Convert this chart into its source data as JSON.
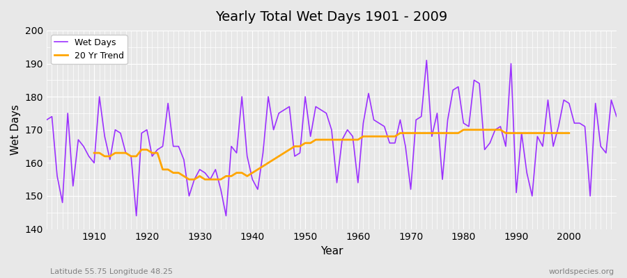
{
  "title": "Yearly Total Wet Days 1901 - 2009",
  "xlabel": "Year",
  "ylabel": "Wet Days",
  "bottom_left_label": "Latitude 55.75 Longitude 48.25",
  "bottom_right_label": "worldspecies.org",
  "ylim": [
    140,
    200
  ],
  "xlim": [
    1901,
    2009
  ],
  "yticks": [
    140,
    150,
    160,
    170,
    180,
    190,
    200
  ],
  "xticks": [
    1910,
    1920,
    1930,
    1940,
    1950,
    1960,
    1970,
    1980,
    1990,
    2000
  ],
  "wet_days_color": "#9B30FF",
  "trend_color": "#FFA500",
  "bg_color": "#E8E8E8",
  "grid_color": "#FFFFFF",
  "legend_wet_days": "Wet Days",
  "legend_trend": "20 Yr Trend",
  "years": [
    1901,
    1902,
    1903,
    1904,
    1905,
    1906,
    1907,
    1908,
    1909,
    1910,
    1911,
    1912,
    1913,
    1914,
    1915,
    1916,
    1917,
    1918,
    1919,
    1920,
    1921,
    1922,
    1923,
    1924,
    1925,
    1926,
    1927,
    1928,
    1929,
    1930,
    1931,
    1932,
    1933,
    1934,
    1935,
    1936,
    1937,
    1938,
    1939,
    1940,
    1941,
    1942,
    1943,
    1944,
    1945,
    1946,
    1947,
    1948,
    1949,
    1950,
    1951,
    1952,
    1953,
    1954,
    1955,
    1956,
    1957,
    1958,
    1959,
    1960,
    1961,
    1962,
    1963,
    1964,
    1965,
    1966,
    1967,
    1968,
    1969,
    1970,
    1971,
    1972,
    1973,
    1974,
    1975,
    1976,
    1977,
    1978,
    1979,
    1980,
    1981,
    1982,
    1983,
    1984,
    1985,
    1986,
    1987,
    1988,
    1989,
    1990,
    1991,
    1992,
    1993,
    1994,
    1995,
    1996,
    1997,
    1998,
    1999,
    2000,
    2001,
    2002,
    2003,
    2004,
    2005,
    2006,
    2007,
    2008,
    2009
  ],
  "wet_days": [
    173,
    174,
    156,
    148,
    175,
    153,
    167,
    165,
    162,
    160,
    180,
    168,
    161,
    170,
    169,
    163,
    162,
    144,
    169,
    170,
    162,
    164,
    165,
    178,
    165,
    165,
    161,
    150,
    155,
    158,
    157,
    155,
    158,
    152,
    144,
    165,
    163,
    180,
    162,
    155,
    152,
    163,
    180,
    170,
    175,
    176,
    177,
    162,
    163,
    180,
    168,
    177,
    176,
    175,
    170,
    154,
    167,
    170,
    168,
    154,
    172,
    181,
    173,
    172,
    171,
    166,
    166,
    173,
    165,
    152,
    173,
    174,
    191,
    168,
    175,
    155,
    173,
    182,
    183,
    172,
    171,
    185,
    184,
    164,
    166,
    170,
    171,
    165,
    190,
    151,
    169,
    157,
    150,
    168,
    165,
    179,
    165,
    171,
    179,
    178,
    172,
    172,
    171,
    150,
    178,
    165,
    163,
    179,
    174
  ],
  "trend_years": [
    1910,
    1911,
    1912,
    1913,
    1914,
    1915,
    1916,
    1917,
    1918,
    1919,
    1920,
    1921,
    1922,
    1923,
    1924,
    1925,
    1926,
    1927,
    1928,
    1929,
    1930,
    1931,
    1932,
    1933,
    1934,
    1935,
    1936,
    1937,
    1938,
    1939,
    1940,
    1941,
    1942,
    1943,
    1944,
    1945,
    1946,
    1947,
    1948,
    1949,
    1950,
    1951,
    1952,
    1953,
    1954,
    1955,
    1956,
    1957,
    1958,
    1959,
    1960,
    1961,
    1962,
    1963,
    1964,
    1965,
    1966,
    1967,
    1968,
    1969,
    1970,
    1971,
    1972,
    1973,
    1974,
    1975,
    1976,
    1977,
    1978,
    1979,
    1980,
    1981,
    1982,
    1983,
    1984,
    1985,
    1986,
    1987,
    1988,
    1989,
    1990,
    1991,
    1992,
    1993,
    1994,
    1995,
    1996,
    1997,
    1998,
    1999,
    2000
  ],
  "trend_values": [
    163,
    163,
    162,
    162,
    163,
    163,
    163,
    162,
    162,
    164,
    164,
    163,
    163,
    158,
    158,
    157,
    157,
    156,
    155,
    155,
    156,
    155,
    155,
    155,
    155,
    156,
    156,
    157,
    157,
    156,
    157,
    158,
    159,
    160,
    161,
    162,
    163,
    164,
    165,
    165,
    166,
    166,
    167,
    167,
    167,
    167,
    167,
    167,
    167,
    167,
    167,
    168,
    168,
    168,
    168,
    168,
    168,
    168,
    169,
    169,
    169,
    169,
    169,
    169,
    169,
    169,
    169,
    169,
    169,
    169,
    170,
    170,
    170,
    170,
    170,
    170,
    170,
    170,
    169,
    169,
    169,
    169,
    169,
    169,
    169,
    169,
    169,
    169,
    169,
    169,
    169
  ]
}
